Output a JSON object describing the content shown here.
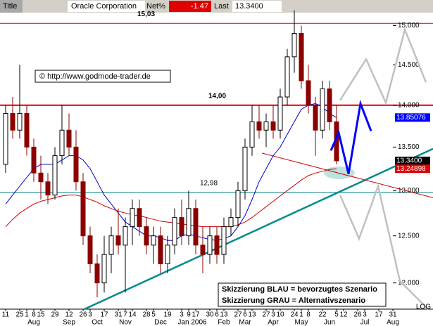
{
  "chart_data": {
    "type": "candlestick",
    "header": {
      "title_label": "Title",
      "title": "Oracle Corporation",
      "net_label": "Net%",
      "net": -1.47,
      "last_label": "Last",
      "last": {
        "value": 13.34,
        "label": "13.3400"
      }
    },
    "log_scale": true,
    "scale_label": "LOG",
    "watermark": "© http://www.godmode-trader.de",
    "xlim": [
      -0.8,
      60.7
    ],
    "ylim": [
      11.73,
      15.17
    ],
    "yticks": [
      {
        "value": 15,
        "label": "15.000"
      },
      {
        "value": 14.5,
        "label": "14.500"
      },
      {
        "value": 14,
        "label": "14.000"
      },
      {
        "value": 13.5,
        "label": "13.500"
      },
      {
        "value": 13,
        "label": "13.000"
      },
      {
        "value": 12.5,
        "label": "12.500"
      },
      {
        "value": 12,
        "label": "12.000"
      }
    ],
    "xticks": [
      {
        "value": 0,
        "label": "11"
      },
      {
        "value": 2,
        "label": "25"
      },
      {
        "value": 3,
        "label": "1"
      },
      {
        "value": 4,
        "label": "8"
      },
      {
        "value": 5,
        "label": "15"
      },
      {
        "value": 7,
        "label": "29"
      },
      {
        "value": 9,
        "label": "12"
      },
      {
        "value": 11,
        "label": "26"
      },
      {
        "value": 12,
        "label": "3"
      },
      {
        "value": 14,
        "label": "17"
      },
      {
        "value": 16,
        "label": "31"
      },
      {
        "value": 17,
        "label": "7"
      },
      {
        "value": 18,
        "label": "14"
      },
      {
        "value": 20,
        "label": "28"
      },
      {
        "value": 21,
        "label": "5"
      },
      {
        "value": 23,
        "label": "19"
      },
      {
        "value": 25,
        "label": "3"
      },
      {
        "value": 26,
        "label": "9"
      },
      {
        "value": 27,
        "label": "17"
      },
      {
        "value": 29,
        "label": "30"
      },
      {
        "value": 30,
        "label": "6"
      },
      {
        "value": 31,
        "label": "13"
      },
      {
        "value": 33,
        "label": "27"
      },
      {
        "value": 34,
        "label": "6"
      },
      {
        "value": 35,
        "label": "13"
      },
      {
        "value": 37,
        "label": "27"
      },
      {
        "value": 38,
        "label": "3"
      },
      {
        "value": 39,
        "label": "10"
      },
      {
        "value": 41,
        "label": "24"
      },
      {
        "value": 42,
        "label": "1"
      },
      {
        "value": 43,
        "label": "8"
      },
      {
        "value": 45,
        "label": "22"
      },
      {
        "value": 47,
        "label": "5"
      },
      {
        "value": 48,
        "label": "12"
      },
      {
        "value": 50,
        "label": "26"
      },
      {
        "value": 51,
        "label": "3"
      },
      {
        "value": 53,
        "label": "17"
      },
      {
        "value": 55,
        "label": "31"
      }
    ],
    "month_labels": [
      {
        "value": 4,
        "label": "Aug"
      },
      {
        "value": 9,
        "label": "Sep"
      },
      {
        "value": 13,
        "label": "Oct"
      },
      {
        "value": 17,
        "label": "Nov"
      },
      {
        "value": 22,
        "label": "Dec"
      },
      {
        "value": 26.5,
        "label": "Jan 2006"
      },
      {
        "value": 31,
        "label": "Feb"
      },
      {
        "value": 34,
        "label": "Mar"
      },
      {
        "value": 38,
        "label": "Apr"
      },
      {
        "value": 42,
        "label": "May"
      },
      {
        "value": 46,
        "label": "Jun"
      },
      {
        "value": 51,
        "label": "Jul"
      },
      {
        "value": 55,
        "label": "Aug"
      }
    ],
    "up_color": "#ffffff",
    "down_color": "#8b0000",
    "open": [
      13.3,
      13.9,
      13.7,
      13.9,
      13.5,
      13.2,
      13.1,
      12.95,
      13.4,
      13.7,
      13.5,
      13.1,
      12.5,
      12.2,
      12.0,
      12.3,
      12.5,
      12.4,
      12.6,
      12.8,
      12.6,
      12.4,
      12.5,
      12.2,
      12.4,
      12.7,
      12.5,
      12.8,
      12.4,
      12.3,
      12.5,
      12.3,
      12.6,
      12.7,
      13.0,
      13.5,
      13.8,
      13.7,
      13.8,
      13.7,
      14.1,
      14.6,
      14.9,
      14.3,
      14.0,
      13.7,
      14.2,
      13.8
    ],
    "high": [
      14.0,
      14.1,
      14.5,
      14.0,
      13.6,
      13.4,
      13.2,
      13.5,
      14.0,
      13.9,
      13.7,
      13.2,
      12.6,
      12.3,
      12.5,
      12.6,
      12.8,
      12.7,
      12.9,
      12.9,
      12.7,
      12.6,
      12.6,
      12.5,
      12.8,
      12.9,
      13.0,
      12.9,
      12.6,
      12.6,
      12.6,
      12.7,
      12.8,
      13.1,
      13.6,
      14.0,
      14.0,
      13.9,
      14.0,
      14.2,
      14.7,
      15.2,
      15.0,
      14.5,
      14.1,
      14.3,
      14.3,
      14.0
    ],
    "low": [
      13.2,
      13.6,
      13.6,
      13.4,
      13.1,
      12.9,
      12.85,
      12.9,
      13.3,
      13.4,
      13.0,
      12.4,
      12.1,
      11.85,
      11.9,
      12.1,
      12.3,
      11.9,
      12.4,
      12.5,
      12.3,
      12.2,
      12.1,
      12.1,
      12.3,
      12.4,
      12.4,
      12.3,
      12.1,
      12.2,
      12.2,
      12.2,
      12.5,
      12.6,
      12.9,
      13.4,
      13.6,
      13.5,
      13.6,
      13.6,
      14.0,
      14.4,
      14.2,
      13.9,
      13.4,
      13.6,
      13.7,
      13.3
    ],
    "close": [
      13.9,
      13.7,
      13.9,
      13.5,
      13.2,
      13.1,
      12.95,
      13.4,
      13.7,
      13.5,
      13.1,
      12.5,
      12.2,
      12.0,
      12.3,
      12.5,
      12.4,
      12.6,
      12.8,
      12.6,
      12.4,
      12.5,
      12.2,
      12.4,
      12.7,
      12.5,
      12.8,
      12.4,
      12.3,
      12.5,
      12.3,
      12.6,
      12.7,
      13.0,
      13.5,
      13.8,
      13.7,
      13.8,
      13.7,
      14.1,
      14.6,
      14.9,
      14.3,
      14.0,
      13.7,
      14.2,
      13.8,
      13.34
    ],
    "moving_averages": [
      {
        "color": "#0000cc",
        "values": [
          12.85,
          12.95,
          13.05,
          13.15,
          13.25,
          13.3,
          13.3,
          13.3,
          13.35,
          13.4,
          13.4,
          13.35,
          13.25,
          13.1,
          12.95,
          12.85,
          12.75,
          12.65,
          12.6,
          12.55,
          12.5,
          12.5,
          12.48,
          12.45,
          12.45,
          12.5,
          12.52,
          12.5,
          12.48,
          12.46,
          12.45,
          12.47,
          12.5,
          12.6,
          12.72,
          12.9,
          13.1,
          13.25,
          13.4,
          13.5,
          13.65,
          13.8,
          13.95,
          14.0,
          14.02,
          13.98,
          13.9,
          13.85
        ]
      },
      {
        "color": "#cc0000",
        "values": [
          12.6,
          12.68,
          12.75,
          12.8,
          12.85,
          12.88,
          12.9,
          12.92,
          12.94,
          12.95,
          12.95,
          12.93,
          12.9,
          12.87,
          12.83,
          12.8,
          12.77,
          12.75,
          12.73,
          12.72,
          12.7,
          12.68,
          12.66,
          12.65,
          12.64,
          12.63,
          12.62,
          12.61,
          12.6,
          12.6,
          12.6,
          12.6,
          12.6,
          12.62,
          12.65,
          12.7,
          12.76,
          12.82,
          12.88,
          12.94,
          13.0,
          13.06,
          13.12,
          13.17,
          13.2,
          13.22,
          13.24,
          13.25
        ]
      }
    ],
    "last_values": [
      {
        "value": 13.85076,
        "label": "13.85076",
        "color": "#0000ff"
      },
      {
        "value": 13.34,
        "label": "13.3400",
        "color": "#000000"
      },
      {
        "value": 13.24898,
        "label": "13.24898",
        "color": "#e00000"
      }
    ],
    "levels": [
      {
        "value": 15.03,
        "label": "15,03",
        "color": "#cc0000",
        "width": 1
      },
      {
        "value": 14.0,
        "label": "14,00",
        "color": "#e00000",
        "width": 2
      },
      {
        "value": 12.98,
        "label": "12,98",
        "color": "#008080",
        "width": 1
      }
    ],
    "trendlines": [
      {
        "color": "#008b8b",
        "x": [
          11.2,
          60.7
        ],
        "values": [
          11.73,
          13.48
        ]
      },
      {
        "color": "#cc0000",
        "x": [
          36.4,
          60.7
        ],
        "values": [
          13.43,
          12.92
        ]
      }
    ],
    "scenarios": [
      {
        "name": "Skizzierung BLAU = bevorzugtes Szenario",
        "color": "#0000ff",
        "x": [
          46.2,
          47.3,
          48.7,
          50.4,
          51.9
        ],
        "values": [
          13.46,
          13.67,
          13.19,
          14.02,
          13.69
        ]
      },
      {
        "name": "Skizzierung GRAU = Alternativszenario",
        "color": "#c0c0c0",
        "x": [
          47.5,
          51.2,
          54,
          56.7,
          59.7,
          null,
          47.5,
          50.2,
          52.9,
          56,
          60
        ],
        "values": [
          14.06,
          14.57,
          14.03,
          14.95,
          14.28,
          null,
          12.95,
          12.47,
          13.05,
          12.02,
          11.73
        ]
      }
    ]
  }
}
